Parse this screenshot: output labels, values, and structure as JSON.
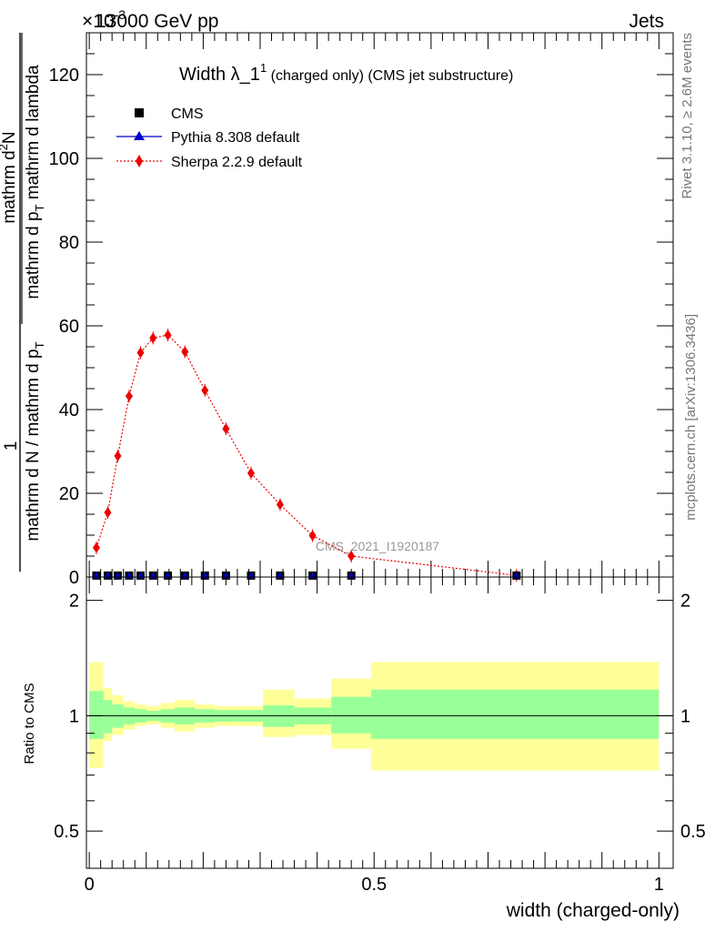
{
  "header": {
    "energy": "13000 GeV pp",
    "process": "Jets",
    "exponent": "×10",
    "exponent_power": "-3"
  },
  "side_labels": {
    "rivet": "Rivet 3.1.10, ≥ 2.6M events",
    "mcplots": "mcplots.cern.ch [arXiv:1306.3436]"
  },
  "watermark": "CMS_2021_I1920187",
  "chart_data": [
    {
      "type": "line",
      "title_main": "Width λ_1",
      "title_sup": "1",
      "title_sub": " (charged only) (CMS jet substructure)",
      "ylabel_main": "1",
      "ylabel_denominator": "mathrm d N / mathrm d p",
      "ylabel_denominator_sub": "T",
      "ylabel_numerator": "mathrm d",
      "ylabel_numerator_sup": "2",
      "ylabel_numerator_tail": "N",
      "ylabel_lower": "mathrm d p",
      "ylabel_lower_sub": "T",
      "ylabel_lower_tail": " mathrm d lambda",
      "ylim": [
        0,
        130
      ],
      "xlim": [
        -0.005,
        1.025
      ],
      "yticks": [
        "0",
        "20",
        "40",
        "60",
        "80",
        "100",
        "120"
      ],
      "legend": [
        "CMS",
        "Pythia 8.308 default",
        "Sherpa 2.2.9 default"
      ],
      "colors": {
        "cms": "#000000",
        "pythia": "#0000cc",
        "sherpa": "#ee0000"
      },
      "x": [
        0.0125,
        0.0325,
        0.05,
        0.07,
        0.09,
        0.112,
        0.138,
        0.168,
        0.203,
        0.24,
        0.284,
        0.335,
        0.392,
        0.46,
        0.75
      ],
      "series": [
        {
          "name": "CMS",
          "values": [
            0.35,
            0.35,
            0.35,
            0.35,
            0.35,
            0.35,
            0.35,
            0.35,
            0.35,
            0.35,
            0.35,
            0.35,
            0.35,
            0.35,
            0.35
          ]
        },
        {
          "name": "Pythia 8.308 default",
          "values": [
            0.35,
            0.35,
            0.35,
            0.35,
            0.35,
            0.35,
            0.35,
            0.35,
            0.35,
            0.35,
            0.35,
            0.35,
            0.35,
            0.35,
            0.35
          ]
        },
        {
          "name": "Sherpa 2.2.9 default",
          "values": [
            7.0,
            15.4,
            28.9,
            43.2,
            53.6,
            57.1,
            57.8,
            53.8,
            44.6,
            35.4,
            24.8,
            17.3,
            9.9,
            5.0,
            0.4
          ]
        }
      ]
    },
    {
      "type": "area",
      "ylabel": "Ratio to CMS",
      "xlabel": "width (charged-only)",
      "ylim": [
        0.4,
        2.3
      ],
      "yscale": "log",
      "yticks": [
        "0.5",
        "1",
        "2"
      ],
      "xticks": [
        "0",
        "0.5",
        "1"
      ],
      "bins": [
        0,
        0.025,
        0.04,
        0.06,
        0.08,
        0.1,
        0.125,
        0.15,
        0.185,
        0.22,
        0.26,
        0.305,
        0.36,
        0.425,
        0.495,
        1.0
      ],
      "stat_band_lo": [
        0.87,
        0.9,
        0.93,
        0.95,
        0.96,
        0.97,
        0.96,
        0.95,
        0.96,
        0.965,
        0.965,
        0.935,
        0.95,
        0.9,
        0.87
      ],
      "stat_band_hi": [
        1.16,
        1.1,
        1.07,
        1.05,
        1.04,
        1.03,
        1.04,
        1.05,
        1.04,
        1.035,
        1.035,
        1.065,
        1.05,
        1.12,
        1.17
      ],
      "total_band_lo": [
        0.73,
        0.86,
        0.89,
        0.92,
        0.94,
        0.95,
        0.93,
        0.91,
        0.93,
        0.94,
        0.94,
        0.88,
        0.89,
        0.82,
        0.72
      ],
      "total_band_hi": [
        1.38,
        1.18,
        1.13,
        1.09,
        1.07,
        1.06,
        1.08,
        1.1,
        1.07,
        1.06,
        1.06,
        1.17,
        1.11,
        1.25,
        1.38
      ],
      "colors": {
        "total": "#ffff99",
        "stat": "#99ff99",
        "reference": "#000000"
      }
    }
  ]
}
